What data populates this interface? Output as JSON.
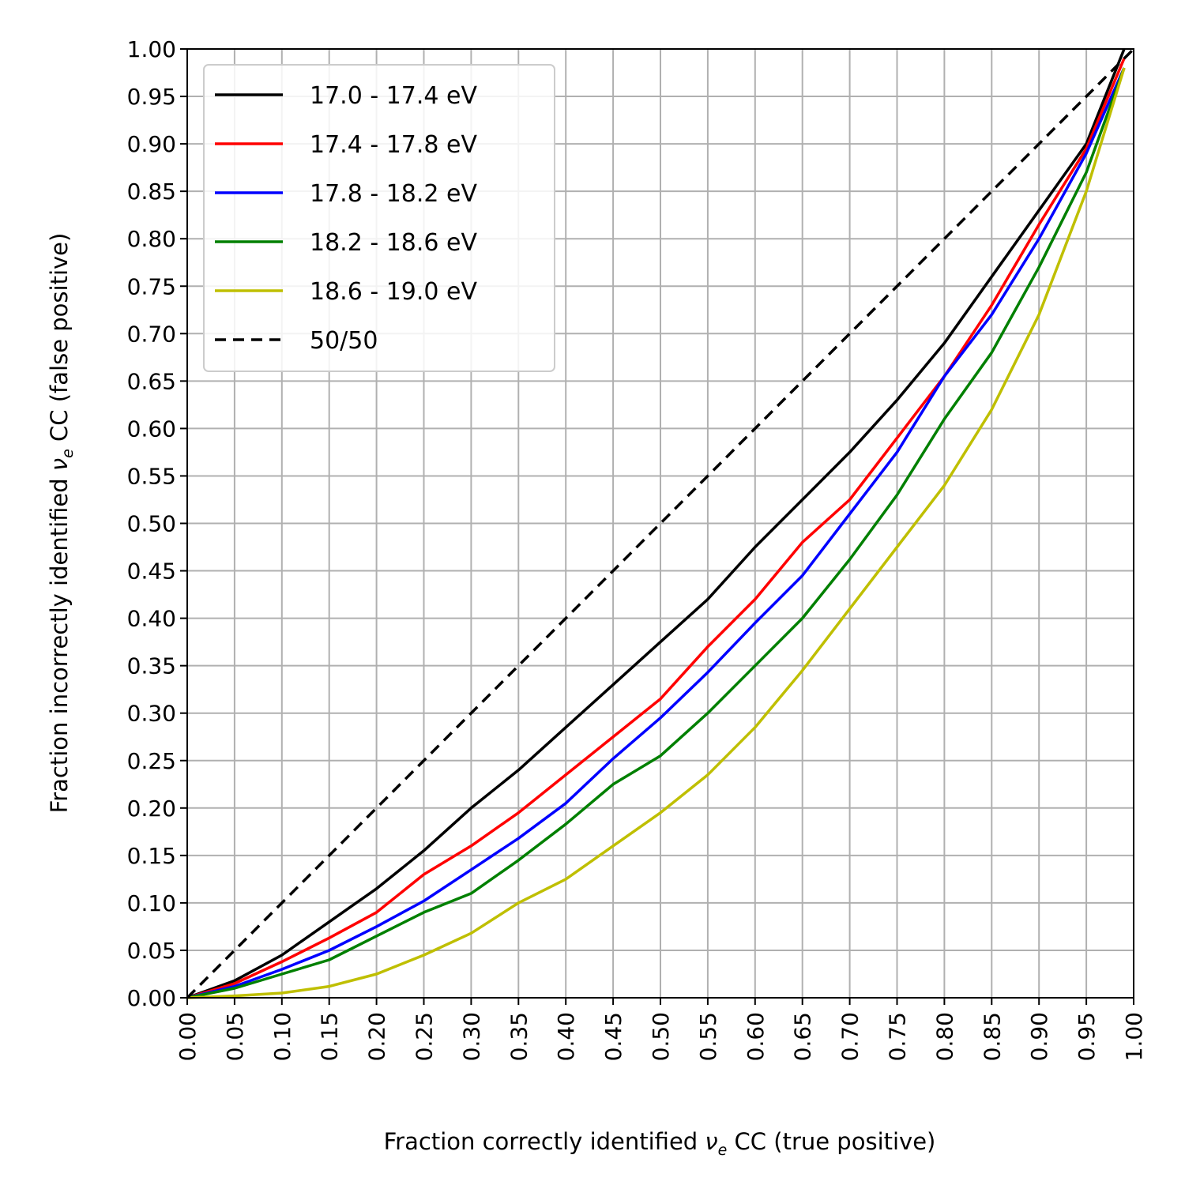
{
  "chart_data": {
    "type": "line",
    "xlabel": "Fraction correctly identified ν_e CC (true positive)",
    "ylabel": "Fraction incorrectly identified ν_e CC (false positive)",
    "xlabel_parts": {
      "before": "Fraction correctly identified ",
      "nu": "ν",
      "sub": "e",
      "after": " CC (true positive)"
    },
    "ylabel_parts": {
      "before": "Fraction incorrectly identified ",
      "nu": "ν",
      "sub": "e",
      "after": " CC (false positive)"
    },
    "xlim": [
      0,
      1
    ],
    "ylim": [
      0,
      1
    ],
    "xticks": [
      "0.00",
      "0.05",
      "0.10",
      "0.15",
      "0.20",
      "0.25",
      "0.30",
      "0.35",
      "0.40",
      "0.45",
      "0.50",
      "0.55",
      "0.60",
      "0.65",
      "0.70",
      "0.75",
      "0.80",
      "0.85",
      "0.90",
      "0.95",
      "1.00"
    ],
    "yticks": [
      "0.00",
      "0.05",
      "0.10",
      "0.15",
      "0.20",
      "0.25",
      "0.30",
      "0.35",
      "0.40",
      "0.45",
      "0.50",
      "0.55",
      "0.60",
      "0.65",
      "0.70",
      "0.75",
      "0.80",
      "0.85",
      "0.90",
      "0.95",
      "1.00"
    ],
    "grid": true,
    "legend_position": "top-left",
    "series": [
      {
        "name": "17.0 - 17.4 eV",
        "color": "#000000",
        "dash": "solid",
        "x": [
          0,
          0.05,
          0.1,
          0.15,
          0.2,
          0.25,
          0.3,
          0.35,
          0.4,
          0.45,
          0.5,
          0.55,
          0.6,
          0.65,
          0.7,
          0.75,
          0.8,
          0.85,
          0.9,
          0.95,
          0.99
        ],
        "y": [
          0,
          0.018,
          0.045,
          0.08,
          0.115,
          0.155,
          0.2,
          0.24,
          0.285,
          0.33,
          0.375,
          0.42,
          0.475,
          0.525,
          0.575,
          0.63,
          0.69,
          0.76,
          0.83,
          0.9,
          1.0
        ]
      },
      {
        "name": "17.4 - 17.8 eV",
        "color": "#ff0000",
        "dash": "solid",
        "x": [
          0,
          0.05,
          0.1,
          0.15,
          0.2,
          0.25,
          0.3,
          0.35,
          0.4,
          0.45,
          0.5,
          0.55,
          0.6,
          0.65,
          0.7,
          0.75,
          0.8,
          0.85,
          0.9,
          0.95,
          0.99
        ],
        "y": [
          0,
          0.015,
          0.038,
          0.063,
          0.09,
          0.13,
          0.16,
          0.195,
          0.235,
          0.275,
          0.315,
          0.37,
          0.42,
          0.48,
          0.525,
          0.59,
          0.655,
          0.73,
          0.815,
          0.895,
          0.99
        ]
      },
      {
        "name": "17.8 - 18.2 eV",
        "color": "#0000ff",
        "dash": "solid",
        "x": [
          0,
          0.05,
          0.1,
          0.15,
          0.2,
          0.25,
          0.3,
          0.35,
          0.4,
          0.45,
          0.5,
          0.55,
          0.6,
          0.65,
          0.7,
          0.75,
          0.8,
          0.85,
          0.9,
          0.95,
          0.99
        ],
        "y": [
          0,
          0.012,
          0.03,
          0.05,
          0.075,
          0.102,
          0.135,
          0.168,
          0.205,
          0.252,
          0.295,
          0.343,
          0.395,
          0.445,
          0.51,
          0.575,
          0.655,
          0.72,
          0.8,
          0.89,
          0.98
        ]
      },
      {
        "name": "18.2 - 18.6 eV",
        "color": "#008000",
        "dash": "solid",
        "x": [
          0,
          0.05,
          0.1,
          0.15,
          0.2,
          0.25,
          0.3,
          0.35,
          0.4,
          0.45,
          0.5,
          0.55,
          0.6,
          0.65,
          0.7,
          0.75,
          0.8,
          0.85,
          0.9,
          0.95,
          0.99
        ],
        "y": [
          0,
          0.01,
          0.025,
          0.04,
          0.065,
          0.09,
          0.11,
          0.145,
          0.183,
          0.225,
          0.255,
          0.3,
          0.35,
          0.4,
          0.462,
          0.53,
          0.61,
          0.68,
          0.77,
          0.87,
          0.98
        ]
      },
      {
        "name": "18.6 - 19.0 eV",
        "color": "#bfbf00",
        "dash": "solid",
        "x": [
          0,
          0.05,
          0.1,
          0.15,
          0.2,
          0.25,
          0.3,
          0.35,
          0.4,
          0.45,
          0.5,
          0.55,
          0.6,
          0.65,
          0.7,
          0.75,
          0.8,
          0.85,
          0.9,
          0.95,
          0.99
        ],
        "y": [
          0,
          0.002,
          0.005,
          0.012,
          0.025,
          0.045,
          0.068,
          0.1,
          0.125,
          0.16,
          0.195,
          0.235,
          0.285,
          0.345,
          0.41,
          0.475,
          0.54,
          0.62,
          0.72,
          0.85,
          0.98
        ]
      },
      {
        "name": "50/50",
        "color": "#000000",
        "dash": "dashed",
        "x": [
          0,
          1
        ],
        "y": [
          0,
          1
        ]
      }
    ]
  }
}
